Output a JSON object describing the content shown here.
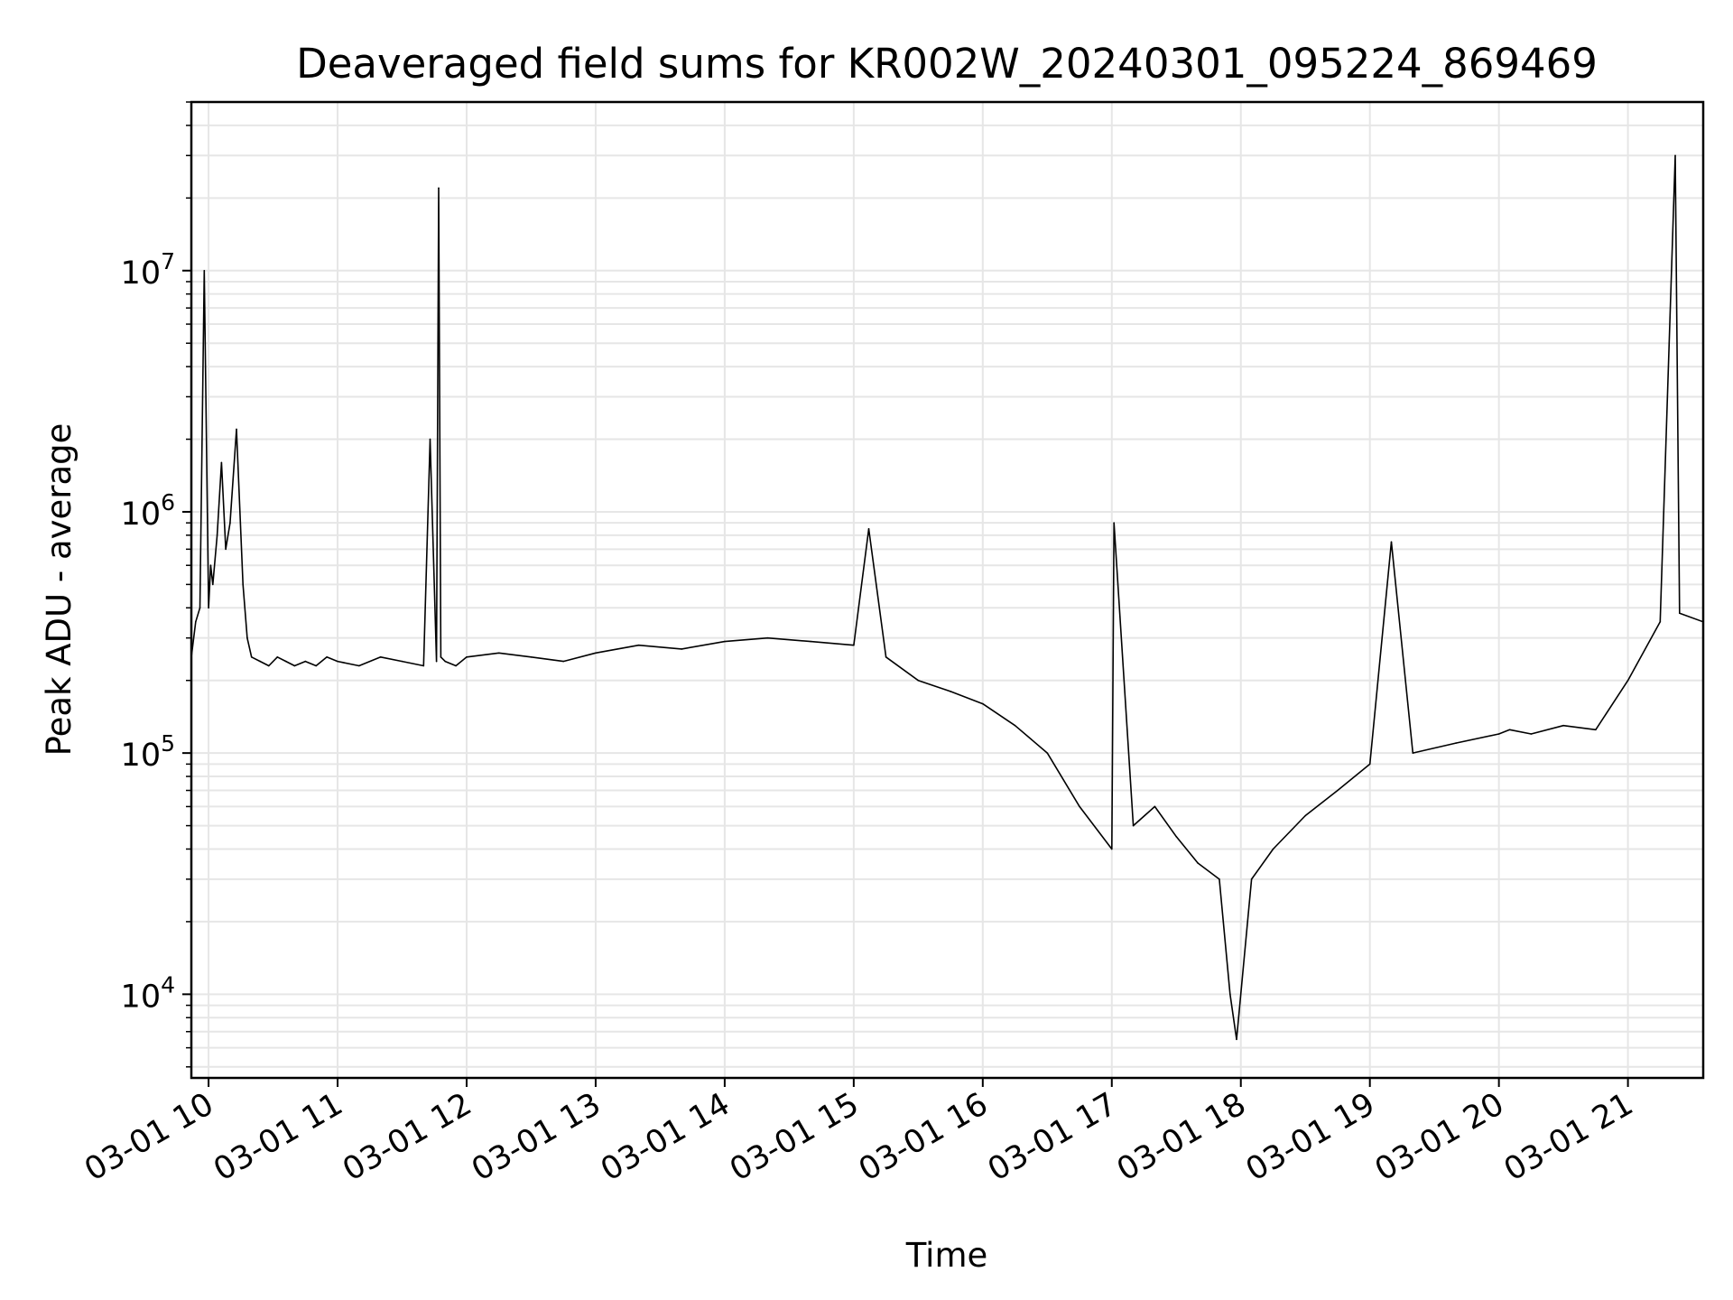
{
  "chart_data": {
    "type": "line",
    "title": "Deaveraged field sums for KR002W_20240301_095224_869469",
    "xlabel": "Time",
    "ylabel": "Peak ADU - average",
    "y_scale": "log",
    "xlim": [
      "2024-03-01 09:52",
      "2024-03-01 21:35"
    ],
    "ylim": [
      4500,
      50000000
    ],
    "grid": {
      "major": true,
      "minor_y": true,
      "color": "#e6e6e6"
    },
    "line_color": "#000000",
    "x_ticks": [
      {
        "time": "2024-03-01 10:00",
        "label": "03-01 10"
      },
      {
        "time": "2024-03-01 11:00",
        "label": "03-01 11"
      },
      {
        "time": "2024-03-01 12:00",
        "label": "03-01 12"
      },
      {
        "time": "2024-03-01 13:00",
        "label": "03-01 13"
      },
      {
        "time": "2024-03-01 14:00",
        "label": "03-01 14"
      },
      {
        "time": "2024-03-01 15:00",
        "label": "03-01 15"
      },
      {
        "time": "2024-03-01 16:00",
        "label": "03-01 16"
      },
      {
        "time": "2024-03-01 17:00",
        "label": "03-01 17"
      },
      {
        "time": "2024-03-01 18:00",
        "label": "03-01 18"
      },
      {
        "time": "2024-03-01 19:00",
        "label": "03-01 19"
      },
      {
        "time": "2024-03-01 20:00",
        "label": "03-01 20"
      },
      {
        "time": "2024-03-01 21:00",
        "label": "03-01 21"
      }
    ],
    "y_ticks": [
      {
        "value": 10000,
        "base": "10",
        "exp": "4"
      },
      {
        "value": 100000,
        "base": "10",
        "exp": "5"
      },
      {
        "value": 1000000,
        "base": "10",
        "exp": "6"
      },
      {
        "value": 10000000,
        "base": "10",
        "exp": "7"
      }
    ],
    "series": [
      {
        "x": [
          "2024-03-01 09:52",
          "2024-03-01 09:54",
          "2024-03-01 09:56",
          "2024-03-01 09:58",
          "2024-03-01 10:00",
          "2024-03-01 10:01",
          "2024-03-01 10:02",
          "2024-03-01 10:04",
          "2024-03-01 10:06",
          "2024-03-01 10:08",
          "2024-03-01 10:10",
          "2024-03-01 10:13",
          "2024-03-01 10:16",
          "2024-03-01 10:18",
          "2024-03-01 10:20",
          "2024-03-01 10:24",
          "2024-03-01 10:28",
          "2024-03-01 10:32",
          "2024-03-01 10:36",
          "2024-03-01 10:40",
          "2024-03-01 10:45",
          "2024-03-01 10:50",
          "2024-03-01 10:55",
          "2024-03-01 11:00",
          "2024-03-01 11:10",
          "2024-03-01 11:20",
          "2024-03-01 11:30",
          "2024-03-01 11:40",
          "2024-03-01 11:43",
          "2024-03-01 11:46",
          "2024-03-01 11:47",
          "2024-03-01 11:48",
          "2024-03-01 11:50",
          "2024-03-01 11:55",
          "2024-03-01 12:00",
          "2024-03-01 12:15",
          "2024-03-01 12:30",
          "2024-03-01 12:45",
          "2024-03-01 13:00",
          "2024-03-01 13:20",
          "2024-03-01 13:40",
          "2024-03-01 14:00",
          "2024-03-01 14:20",
          "2024-03-01 14:40",
          "2024-03-01 15:00",
          "2024-03-01 15:07",
          "2024-03-01 15:15",
          "2024-03-01 15:30",
          "2024-03-01 15:45",
          "2024-03-01 16:00",
          "2024-03-01 16:15",
          "2024-03-01 16:30",
          "2024-03-01 16:45",
          "2024-03-01 17:00",
          "2024-03-01 17:01",
          "2024-03-01 17:10",
          "2024-03-01 17:20",
          "2024-03-01 17:30",
          "2024-03-01 17:40",
          "2024-03-01 17:50",
          "2024-03-01 17:55",
          "2024-03-01 17:58",
          "2024-03-01 18:05",
          "2024-03-01 18:15",
          "2024-03-01 18:30",
          "2024-03-01 18:45",
          "2024-03-01 19:00",
          "2024-03-01 19:10",
          "2024-03-01 19:20",
          "2024-03-01 19:40",
          "2024-03-01 20:00",
          "2024-03-01 20:05",
          "2024-03-01 20:15",
          "2024-03-01 20:30",
          "2024-03-01 20:45",
          "2024-03-01 21:00",
          "2024-03-01 21:15",
          "2024-03-01 21:22",
          "2024-03-01 21:24",
          "2024-03-01 21:35"
        ],
        "y": [
          250000,
          350000,
          400000,
          10000000,
          400000,
          600000,
          500000,
          800000,
          1600000,
          700000,
          900000,
          2200000,
          500000,
          300000,
          250000,
          240000,
          230000,
          250000,
          240000,
          230000,
          240000,
          230000,
          250000,
          240000,
          230000,
          250000,
          240000,
          230000,
          2000000,
          240000,
          22000000,
          250000,
          240000,
          230000,
          250000,
          260000,
          250000,
          240000,
          260000,
          280000,
          270000,
          290000,
          300000,
          290000,
          280000,
          850000,
          250000,
          200000,
          180000,
          160000,
          130000,
          100000,
          60000,
          40000,
          900000,
          50000,
          60000,
          45000,
          35000,
          30000,
          10000,
          6500,
          30000,
          40000,
          55000,
          70000,
          90000,
          750000,
          100000,
          110000,
          120000,
          125000,
          120000,
          130000,
          125000,
          200000,
          350000,
          30000000,
          380000,
          350000
        ]
      }
    ]
  }
}
